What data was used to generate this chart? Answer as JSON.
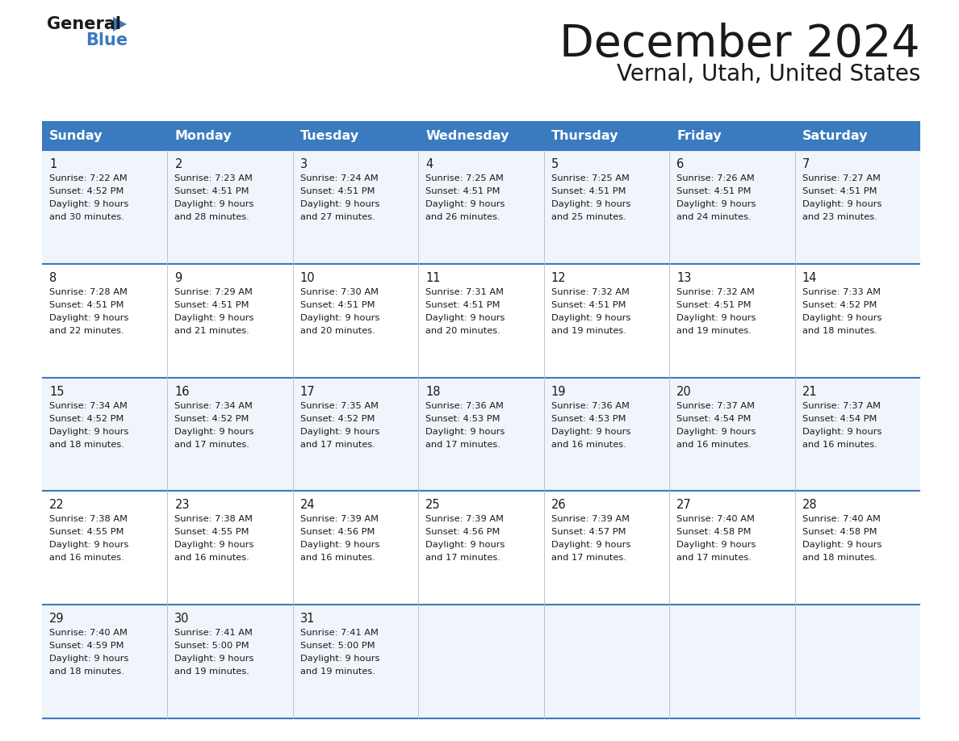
{
  "title": "December 2024",
  "subtitle": "Vernal, Utah, United States",
  "header_color": "#3a7bbf",
  "header_text_color": "#ffffff",
  "row_bg_even": "#f0f5fb",
  "row_bg_odd": "#ffffff",
  "border_color": "#3a7bbf",
  "text_color": "#1a1a1a",
  "days_of_week": [
    "Sunday",
    "Monday",
    "Tuesday",
    "Wednesday",
    "Thursday",
    "Friday",
    "Saturday"
  ],
  "weeks": [
    [
      {
        "day": 1,
        "sunrise": "7:22 AM",
        "sunset": "4:52 PM",
        "daylight": "9 hours\nand 30 minutes."
      },
      {
        "day": 2,
        "sunrise": "7:23 AM",
        "sunset": "4:51 PM",
        "daylight": "9 hours\nand 28 minutes."
      },
      {
        "day": 3,
        "sunrise": "7:24 AM",
        "sunset": "4:51 PM",
        "daylight": "9 hours\nand 27 minutes."
      },
      {
        "day": 4,
        "sunrise": "7:25 AM",
        "sunset": "4:51 PM",
        "daylight": "9 hours\nand 26 minutes."
      },
      {
        "day": 5,
        "sunrise": "7:25 AM",
        "sunset": "4:51 PM",
        "daylight": "9 hours\nand 25 minutes."
      },
      {
        "day": 6,
        "sunrise": "7:26 AM",
        "sunset": "4:51 PM",
        "daylight": "9 hours\nand 24 minutes."
      },
      {
        "day": 7,
        "sunrise": "7:27 AM",
        "sunset": "4:51 PM",
        "daylight": "9 hours\nand 23 minutes."
      }
    ],
    [
      {
        "day": 8,
        "sunrise": "7:28 AM",
        "sunset": "4:51 PM",
        "daylight": "9 hours\nand 22 minutes."
      },
      {
        "day": 9,
        "sunrise": "7:29 AM",
        "sunset": "4:51 PM",
        "daylight": "9 hours\nand 21 minutes."
      },
      {
        "day": 10,
        "sunrise": "7:30 AM",
        "sunset": "4:51 PM",
        "daylight": "9 hours\nand 20 minutes."
      },
      {
        "day": 11,
        "sunrise": "7:31 AM",
        "sunset": "4:51 PM",
        "daylight": "9 hours\nand 20 minutes."
      },
      {
        "day": 12,
        "sunrise": "7:32 AM",
        "sunset": "4:51 PM",
        "daylight": "9 hours\nand 19 minutes."
      },
      {
        "day": 13,
        "sunrise": "7:32 AM",
        "sunset": "4:51 PM",
        "daylight": "9 hours\nand 19 minutes."
      },
      {
        "day": 14,
        "sunrise": "7:33 AM",
        "sunset": "4:52 PM",
        "daylight": "9 hours\nand 18 minutes."
      }
    ],
    [
      {
        "day": 15,
        "sunrise": "7:34 AM",
        "sunset": "4:52 PM",
        "daylight": "9 hours\nand 18 minutes."
      },
      {
        "day": 16,
        "sunrise": "7:34 AM",
        "sunset": "4:52 PM",
        "daylight": "9 hours\nand 17 minutes."
      },
      {
        "day": 17,
        "sunrise": "7:35 AM",
        "sunset": "4:52 PM",
        "daylight": "9 hours\nand 17 minutes."
      },
      {
        "day": 18,
        "sunrise": "7:36 AM",
        "sunset": "4:53 PM",
        "daylight": "9 hours\nand 17 minutes."
      },
      {
        "day": 19,
        "sunrise": "7:36 AM",
        "sunset": "4:53 PM",
        "daylight": "9 hours\nand 16 minutes."
      },
      {
        "day": 20,
        "sunrise": "7:37 AM",
        "sunset": "4:54 PM",
        "daylight": "9 hours\nand 16 minutes."
      },
      {
        "day": 21,
        "sunrise": "7:37 AM",
        "sunset": "4:54 PM",
        "daylight": "9 hours\nand 16 minutes."
      }
    ],
    [
      {
        "day": 22,
        "sunrise": "7:38 AM",
        "sunset": "4:55 PM",
        "daylight": "9 hours\nand 16 minutes."
      },
      {
        "day": 23,
        "sunrise": "7:38 AM",
        "sunset": "4:55 PM",
        "daylight": "9 hours\nand 16 minutes."
      },
      {
        "day": 24,
        "sunrise": "7:39 AM",
        "sunset": "4:56 PM",
        "daylight": "9 hours\nand 16 minutes."
      },
      {
        "day": 25,
        "sunrise": "7:39 AM",
        "sunset": "4:56 PM",
        "daylight": "9 hours\nand 17 minutes."
      },
      {
        "day": 26,
        "sunrise": "7:39 AM",
        "sunset": "4:57 PM",
        "daylight": "9 hours\nand 17 minutes."
      },
      {
        "day": 27,
        "sunrise": "7:40 AM",
        "sunset": "4:58 PM",
        "daylight": "9 hours\nand 17 minutes."
      },
      {
        "day": 28,
        "sunrise": "7:40 AM",
        "sunset": "4:58 PM",
        "daylight": "9 hours\nand 18 minutes."
      }
    ],
    [
      {
        "day": 29,
        "sunrise": "7:40 AM",
        "sunset": "4:59 PM",
        "daylight": "9 hours\nand 18 minutes."
      },
      {
        "day": 30,
        "sunrise": "7:41 AM",
        "sunset": "5:00 PM",
        "daylight": "9 hours\nand 19 minutes."
      },
      {
        "day": 31,
        "sunrise": "7:41 AM",
        "sunset": "5:00 PM",
        "daylight": "9 hours\nand 19 minutes."
      },
      null,
      null,
      null,
      null
    ]
  ]
}
